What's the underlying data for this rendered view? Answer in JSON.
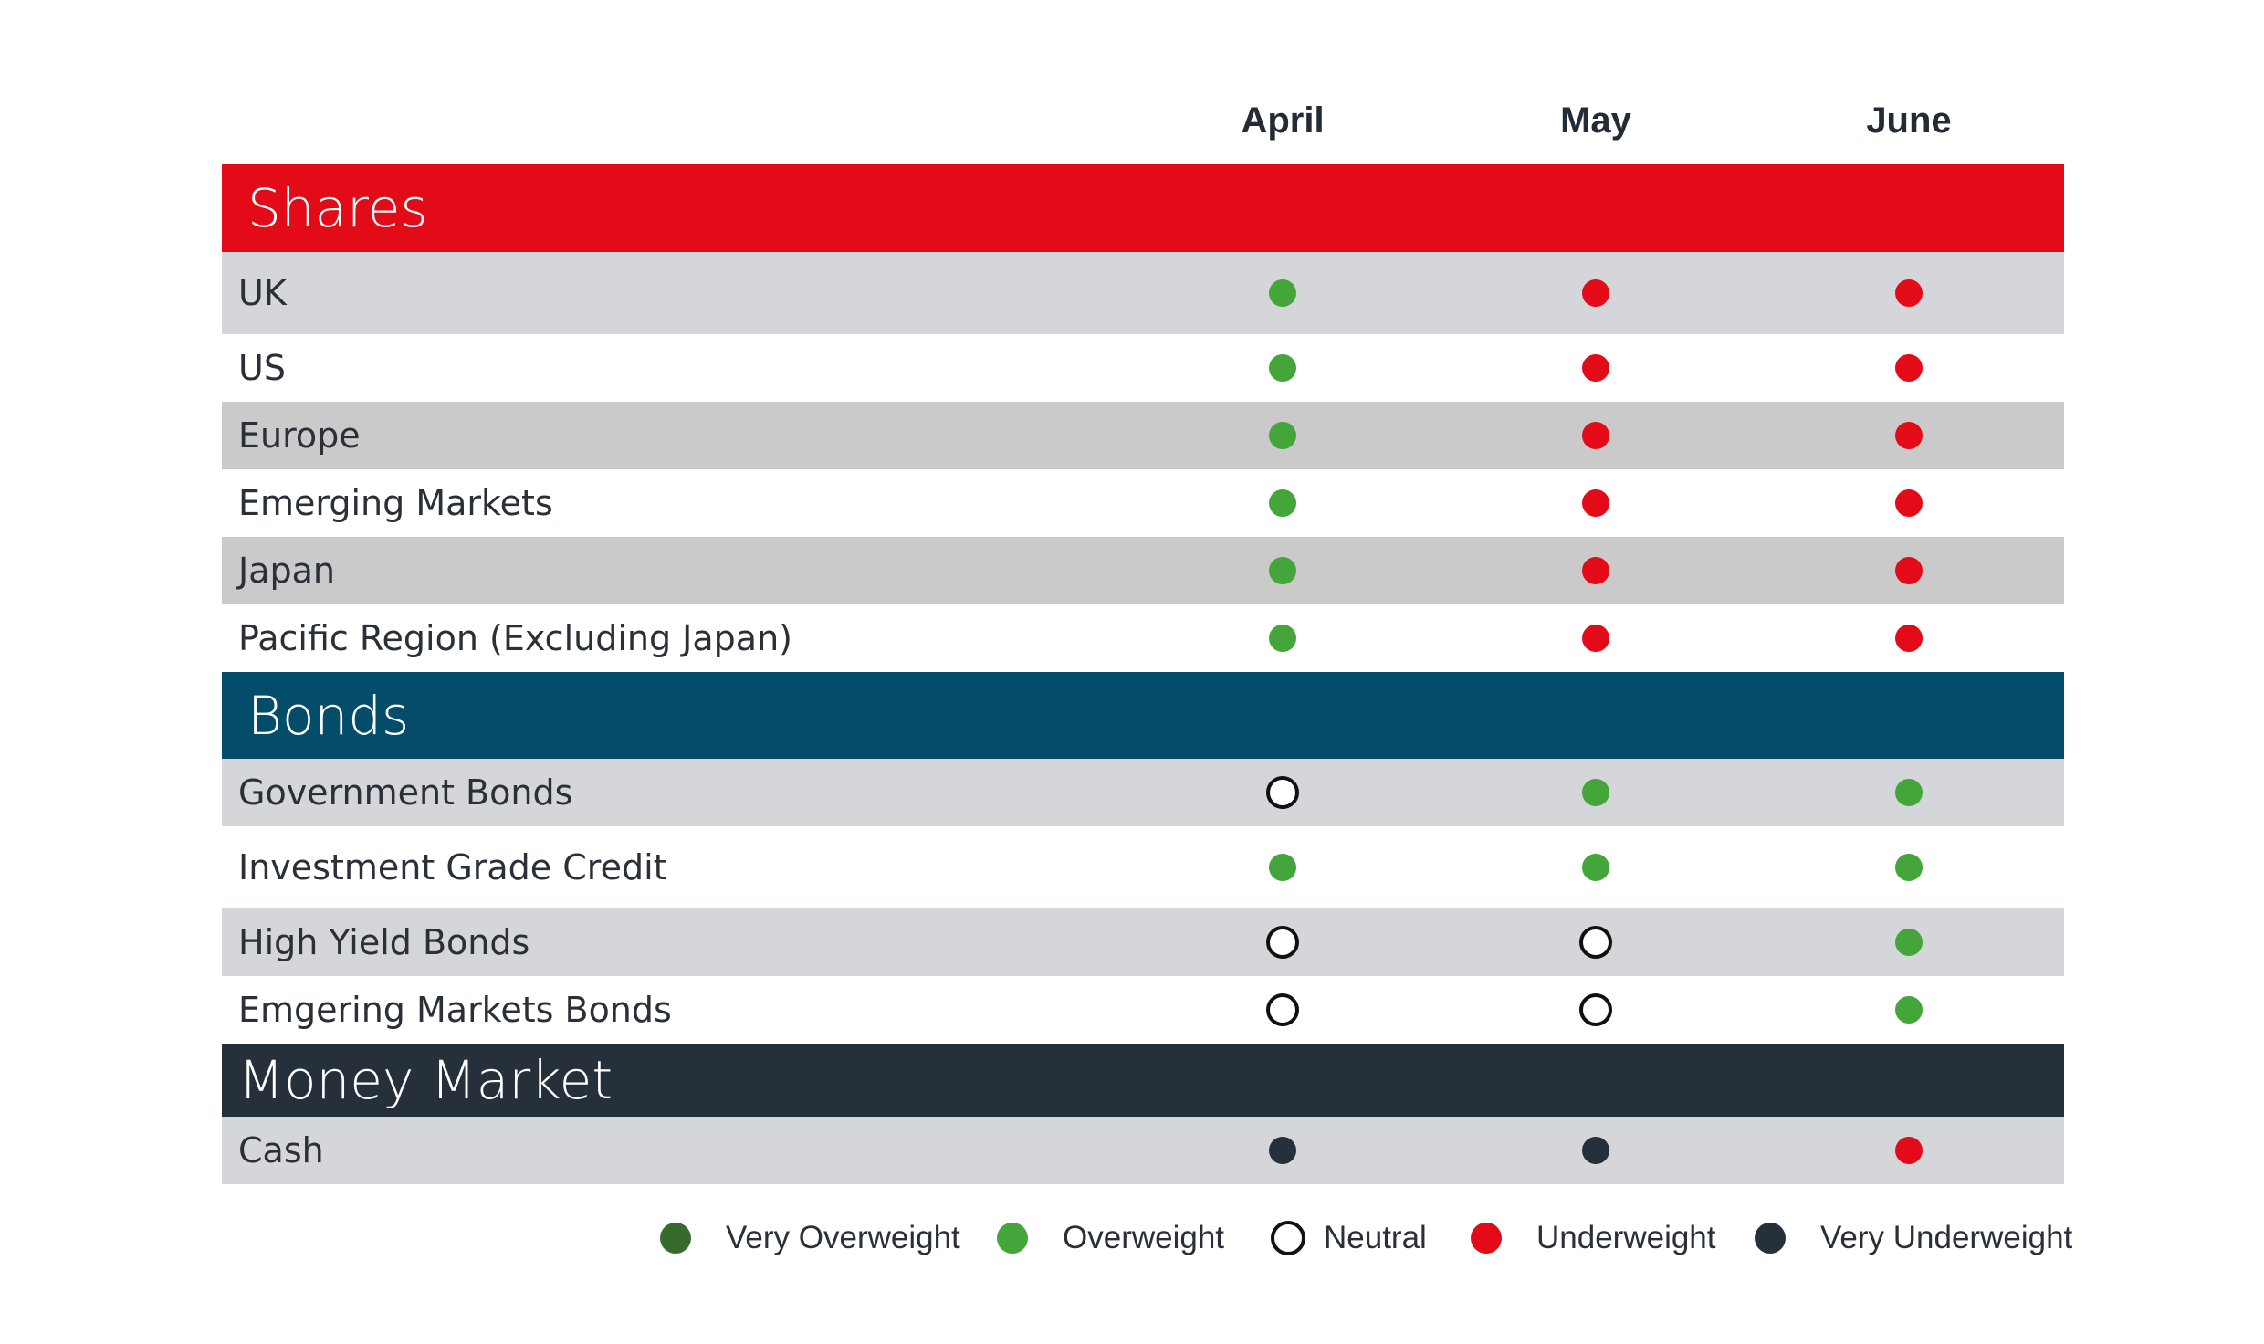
{
  "chart_data": {
    "type": "table",
    "columns": [
      "April",
      "May",
      "June"
    ],
    "legend": [
      {
        "key": "very_overweight",
        "label": "Very Overweight",
        "color": "#376b2c"
      },
      {
        "key": "overweight",
        "label": "Overweight",
        "color": "#44a53a"
      },
      {
        "key": "neutral",
        "label": "Neutral",
        "color": "#ffffff"
      },
      {
        "key": "underweight",
        "label": "Underweight",
        "color": "#e30b17"
      },
      {
        "key": "very_underweight",
        "label": "Very Underweight",
        "color": "#26303b"
      }
    ],
    "sections": [
      {
        "title": "Shares",
        "color": "#e30b17",
        "rows": [
          {
            "label": "UK",
            "values": [
              "overweight",
              "underweight",
              "underweight"
            ]
          },
          {
            "label": "US",
            "values": [
              "overweight",
              "underweight",
              "underweight"
            ]
          },
          {
            "label": "Europe",
            "values": [
              "overweight",
              "underweight",
              "underweight"
            ]
          },
          {
            "label": "Emerging Markets",
            "values": [
              "overweight",
              "underweight",
              "underweight"
            ]
          },
          {
            "label": "Japan",
            "values": [
              "overweight",
              "underweight",
              "underweight"
            ]
          },
          {
            "label": "Pacific Region (Excluding Japan)",
            "values": [
              "overweight",
              "underweight",
              "underweight"
            ]
          }
        ]
      },
      {
        "title": "Bonds",
        "color": "#034d6b",
        "rows": [
          {
            "label": "Government Bonds",
            "values": [
              "neutral",
              "overweight",
              "overweight"
            ]
          },
          {
            "label": "Investment Grade Credit",
            "values": [
              "overweight",
              "overweight",
              "overweight"
            ]
          },
          {
            "label": "High Yield Bonds",
            "values": [
              "neutral",
              "neutral",
              "overweight"
            ]
          },
          {
            "label": "Emgering Markets Bonds",
            "values": [
              "neutral",
              "neutral",
              "overweight"
            ]
          }
        ]
      },
      {
        "title": "Money Market",
        "color": "#26303b",
        "rows": [
          {
            "label": "Cash",
            "values": [
              "very_underweight",
              "very_underweight",
              "underweight"
            ]
          }
        ]
      }
    ]
  }
}
